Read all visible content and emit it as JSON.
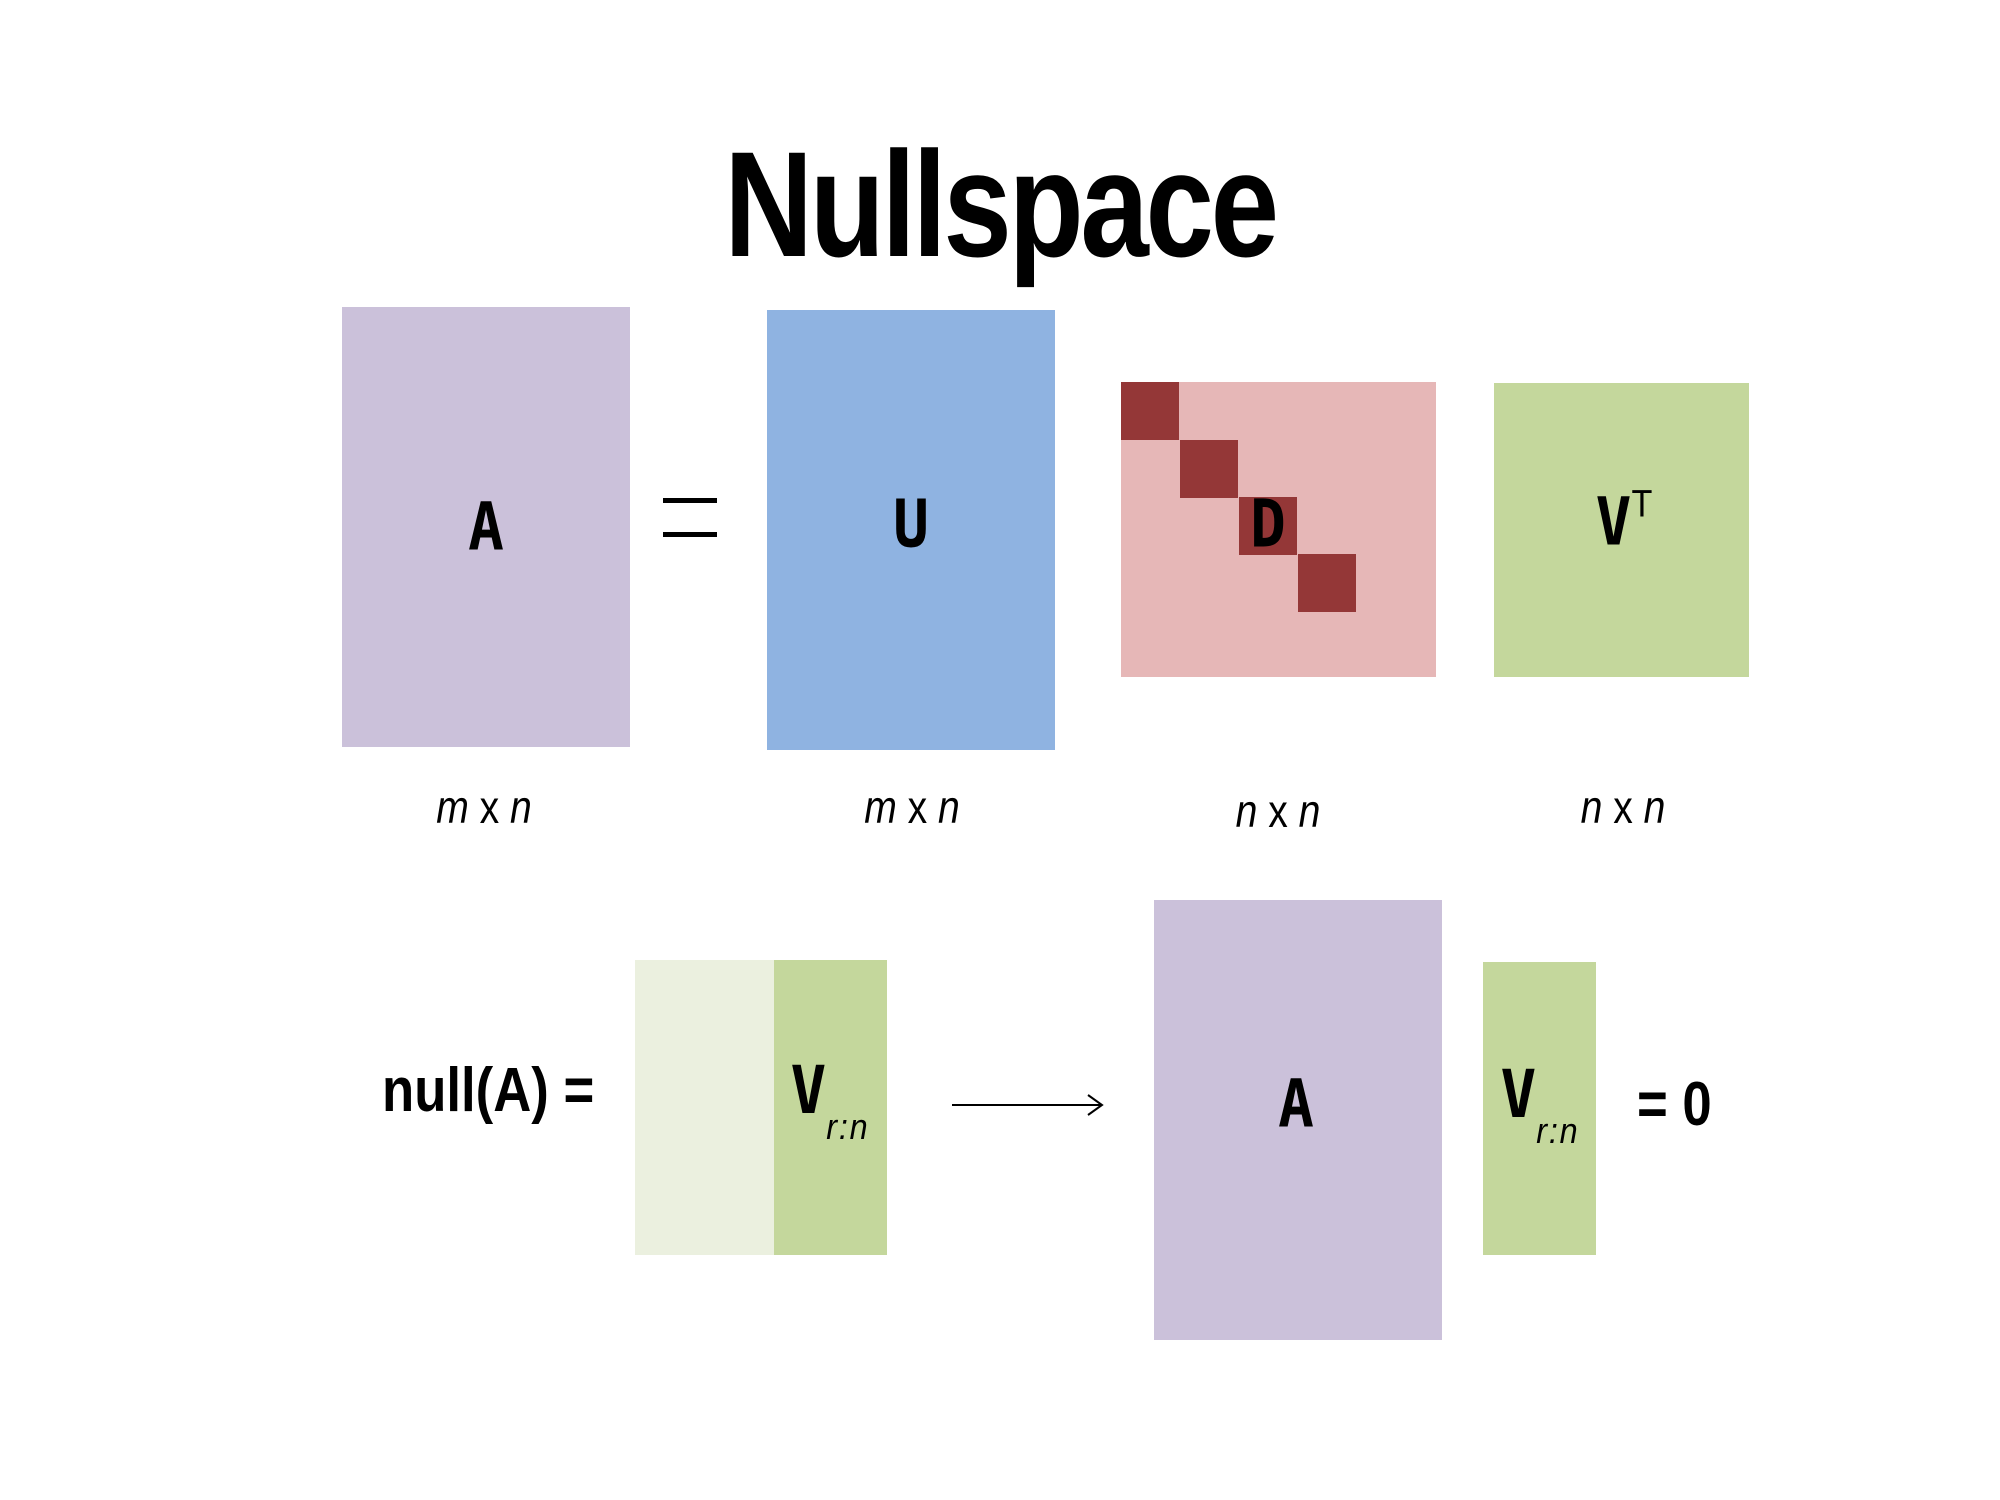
{
  "title": "Nullspace",
  "colors": {
    "A": "#cbc1da",
    "U": "#8fb3e1",
    "D_bg": "#e6b7b7",
    "D_diag": "#943737",
    "V": "#c4d79c",
    "V_light": "#ebf0df"
  },
  "top_row": {
    "A_label": "A",
    "equals": "=",
    "U_label": "U",
    "D_label": "D",
    "V_label": "V",
    "V_sup": "T",
    "dims": {
      "A": {
        "r": "m",
        "x": "x",
        "c": "n"
      },
      "U": {
        "r": "m",
        "x": "x",
        "c": "n"
      },
      "D": {
        "r": "n",
        "x": "x",
        "c": "n"
      },
      "V": {
        "r": "n",
        "x": "x",
        "c": "n"
      }
    }
  },
  "bottom_row": {
    "null_label": "null(A) =",
    "V_label": "V",
    "V_sub": "r:n",
    "A_label": "A",
    "V2_label": "V",
    "V2_sub": "r:n",
    "equals_zero": "= 0"
  }
}
